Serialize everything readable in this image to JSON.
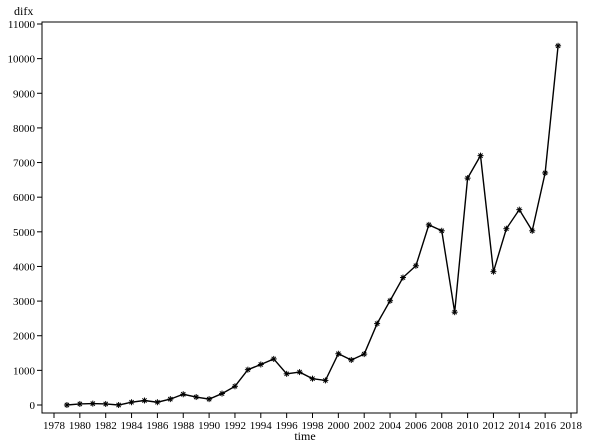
{
  "chart_data": {
    "type": "line",
    "ylabel": "difx",
    "xlabel": "time",
    "xlim": [
      1978,
      2018
    ],
    "ylim": [
      0,
      11000
    ],
    "x_ticks": [
      1978,
      1980,
      1982,
      1984,
      1986,
      1988,
      1990,
      1992,
      1994,
      1996,
      1998,
      2000,
      2002,
      2004,
      2006,
      2008,
      2010,
      2012,
      2014,
      2016,
      2018
    ],
    "y_ticks": [
      0,
      1000,
      2000,
      3000,
      4000,
      5000,
      6000,
      7000,
      8000,
      9000,
      10000,
      11000
    ],
    "marker": "asterisk",
    "x": [
      1979,
      1980,
      1981,
      1982,
      1983,
      1984,
      1985,
      1986,
      1987,
      1988,
      1989,
      1990,
      1991,
      1992,
      1993,
      1994,
      1995,
      1996,
      1997,
      1998,
      1999,
      2000,
      2001,
      2002,
      2003,
      2004,
      2005,
      2006,
      2007,
      2008,
      2009,
      2010,
      2011,
      2012,
      2013,
      2014,
      2015,
      2016,
      2017
    ],
    "y": [
      0,
      30,
      40,
      30,
      0,
      80,
      130,
      80,
      170,
      310,
      230,
      170,
      330,
      540,
      1020,
      1170,
      1330,
      900,
      950,
      760,
      710,
      1480,
      1300,
      1470,
      2350,
      3010,
      3680,
      4020,
      5200,
      5030,
      2680,
      6550,
      7200,
      3850,
      5090,
      5640,
      5030,
      6700,
      10370
    ]
  }
}
